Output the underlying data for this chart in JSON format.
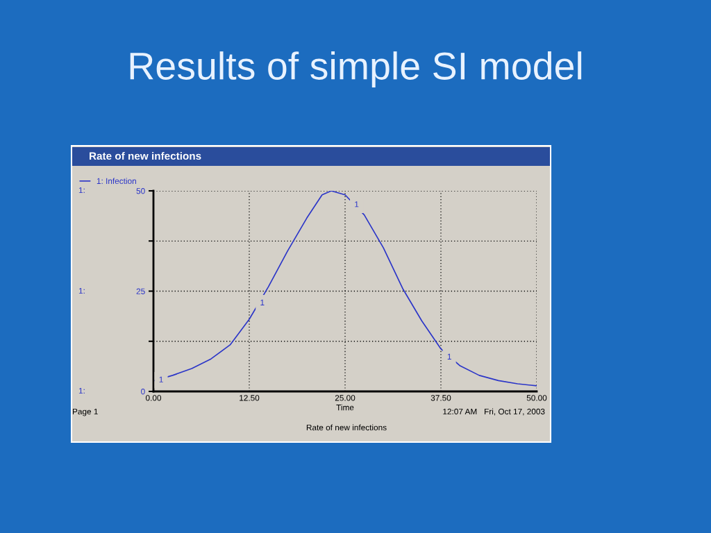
{
  "chart_data": {
    "type": "line",
    "title": "Results of simple SI model",
    "subtitle": "Rate of new infections",
    "xlabel": "Time",
    "x": [
      0,
      2.5,
      5,
      7.5,
      10,
      12.5,
      15,
      17.5,
      20,
      22,
      23.2,
      25,
      27.5,
      30,
      32.5,
      35,
      37.5,
      40,
      42.5,
      45,
      47.5,
      50
    ],
    "series": [
      {
        "name": "1: Infection",
        "color": "#2b35c8",
        "values": [
          2.6,
          4.0,
          5.7,
          8.1,
          11.6,
          18.0,
          26.1,
          35.0,
          43.2,
          49,
          50,
          49,
          44,
          35.8,
          25.7,
          17.6,
          10.6,
          6.4,
          4.0,
          2.7,
          1.9,
          1.4
        ]
      }
    ],
    "xlim": [
      0,
      50
    ],
    "ylim": [
      0,
      50
    ],
    "xticks": [
      {
        "value": 0,
        "label": "0.00"
      },
      {
        "value": 12.5,
        "label": "12.50"
      },
      {
        "value": 25,
        "label": "25.00"
      },
      {
        "value": 37.5,
        "label": "37.50"
      },
      {
        "value": 50,
        "label": "50.00"
      }
    ],
    "yticks": [
      0,
      {
        "value": 12.5,
        "label": null
      },
      25,
      {
        "value": 37.5,
        "label": null
      },
      50
    ],
    "grid": true,
    "legend": "top left",
    "marker": "none",
    "line_style": "solid",
    "annotations": [
      {
        "text": "1",
        "x": 1,
        "y": 2.8
      },
      {
        "text": "1",
        "x": 14.2,
        "y": 22
      },
      {
        "text": "1",
        "x": 26.5,
        "y": 46.5
      },
      {
        "text": "1",
        "x": 38.6,
        "y": 8.5
      },
      "1:",
      "1:",
      "1:",
      "Page 1",
      "12:07 AM   Fri, Oct 17, 2003",
      "Rate of new infections"
    ]
  }
}
